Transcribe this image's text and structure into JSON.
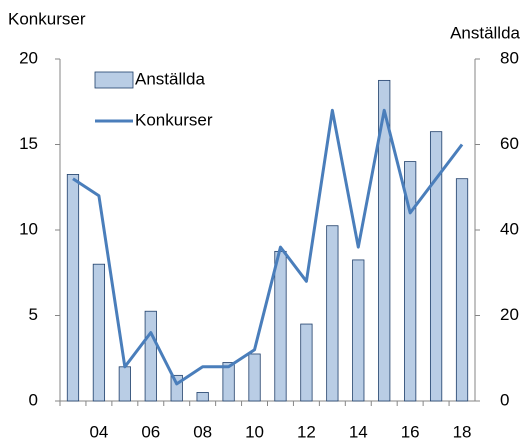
{
  "chart_data": {
    "type": "bar-line",
    "y_axis_label": "Konkurser",
    "y2_axis_label": "Anställda",
    "categories": [
      null,
      "04",
      null,
      "06",
      null,
      "08",
      null,
      "10",
      null,
      "12",
      null,
      "14",
      null,
      "16",
      null,
      "18"
    ],
    "series": [
      {
        "name": "Anställda",
        "type": "bar",
        "axis": "y2",
        "color": "#b9cde5",
        "values": [
          53,
          32,
          8,
          21,
          6,
          2,
          9,
          11,
          35,
          18,
          41,
          33,
          75,
          56,
          63,
          52
        ]
      },
      {
        "name": "Konkurser",
        "type": "line",
        "color": "#4a7ebb",
        "values": [
          13,
          12,
          2,
          4,
          1,
          2,
          2,
          3,
          9,
          7,
          17,
          9,
          17,
          11,
          13,
          15
        ]
      }
    ],
    "ylim": [
      0,
      20
    ],
    "yticks": [
      0,
      5,
      10,
      15,
      20
    ],
    "y2lim": [
      0,
      80
    ],
    "y2ticks": [
      0,
      20,
      40,
      60,
      80
    ],
    "legend": "upper left"
  }
}
